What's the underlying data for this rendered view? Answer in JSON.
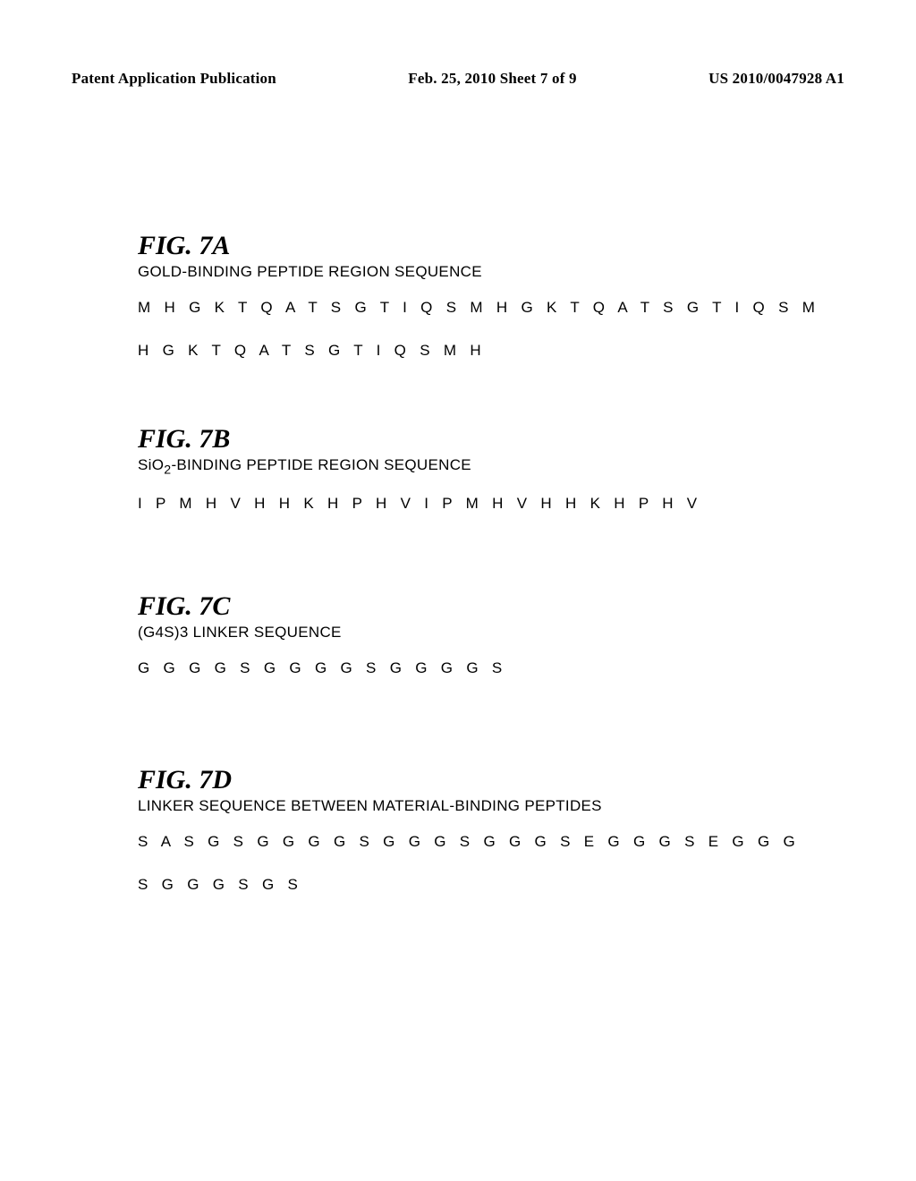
{
  "header": {
    "left": "Patent Application Publication",
    "center": "Feb. 25, 2010  Sheet 7 of 9",
    "right": "US 2010/0047928 A1"
  },
  "figures": {
    "a": {
      "title": "FIG.  7A",
      "subtitle": "GOLD-BINDING PEPTIDE REGION SEQUENCE",
      "lines": [
        "M H G K T Q A T S G T I Q S M H G K T Q A T S G T I Q S M",
        "H G K T Q A T S G T I Q S M H"
      ]
    },
    "b": {
      "title": "FIG.  7B",
      "subtitle_prefix": "SiO",
      "subtitle_sub": "2",
      "subtitle_suffix": "-BINDING PEPTIDE REGION SEQUENCE",
      "lines": [
        "I P M H V H H K H P H V I P M H V H H K H P H V"
      ]
    },
    "c": {
      "title": "FIG.  7C",
      "subtitle": "(G4S)3 LINKER SEQUENCE",
      "lines": [
        "G G G G S G G G G S G G G G S"
      ]
    },
    "d": {
      "title": "FIG.  7D",
      "subtitle": "LINKER SEQUENCE BETWEEN MATERIAL-BINDING PEPTIDES",
      "lines": [
        "S A S G S G G G G S G G G S G G G S E G G G S E G G G",
        "S G G G S G S"
      ]
    }
  }
}
